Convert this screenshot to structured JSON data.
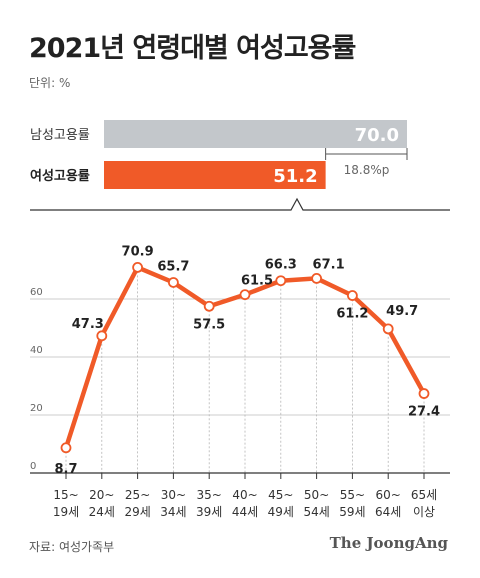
{
  "title": "2021년 연령대별 여성고용률",
  "unit_label": "단위: %",
  "source": "자료: 여성가족부",
  "brand": "The JoongAng",
  "colors": {
    "accent": "#f05a28",
    "male_bar": "#c3c7cb",
    "grid": "#bdbdbd",
    "axis": "#333333"
  },
  "comparison": {
    "max": 70.0,
    "bars": [
      {
        "label": "남성고용률",
        "value": 70.0,
        "value_text": "70.0"
      },
      {
        "label": "여성고용률",
        "value": 51.2,
        "value_text": "51.2"
      }
    ],
    "difference_text": "18.8%p"
  },
  "chart_data": {
    "type": "line",
    "categories": [
      [
        "15~",
        "19세"
      ],
      [
        "20~",
        "24세"
      ],
      [
        "25~",
        "29세"
      ],
      [
        "30~",
        "34세"
      ],
      [
        "35~",
        "39세"
      ],
      [
        "40~",
        "44세"
      ],
      [
        "45~",
        "49세"
      ],
      [
        "50~",
        "54세"
      ],
      [
        "55~",
        "59세"
      ],
      [
        "60~",
        "64세"
      ],
      [
        "65세",
        "이상"
      ]
    ],
    "values": [
      8.7,
      47.3,
      70.9,
      65.7,
      57.5,
      61.5,
      66.3,
      67.1,
      61.2,
      49.7,
      27.4
    ],
    "value_labels": [
      "8.7",
      "47.3",
      "70.9",
      "65.7",
      "57.5",
      "61.5",
      "66.3",
      "67.1",
      "61.2",
      "49.7",
      "27.4"
    ],
    "yticks": [
      0,
      20,
      40,
      60
    ],
    "ylim": [
      0,
      80
    ],
    "grid": true
  }
}
